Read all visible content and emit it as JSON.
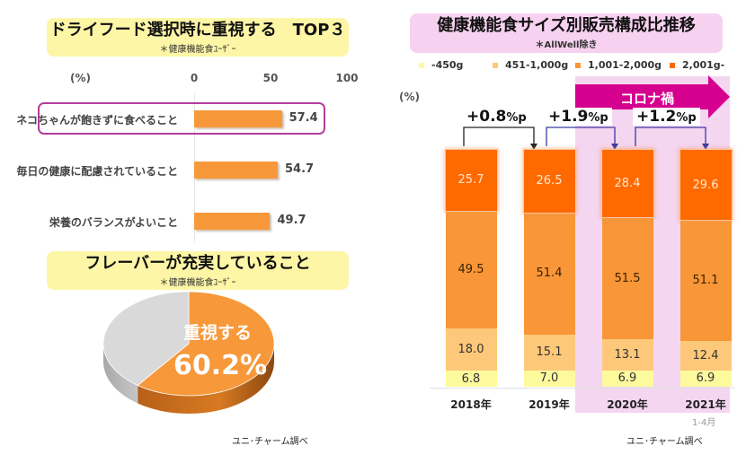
{
  "left": {
    "top_title": "ドライフード選択時に重視する　TOP３",
    "top_subtitle": "＊健康機能食ﾕｰｻﾞｰ",
    "unit_label": "(%)",
    "axis_ticks": [
      "0",
      "50",
      "100"
    ],
    "highlight_color": "#b43c9b",
    "bars": [
      {
        "label": "ネコちゃんが飽きずに食べること",
        "value": 57.4,
        "display": "57.4",
        "highlighted": true
      },
      {
        "label": "毎日の健康に配慮されていること",
        "value": 54.7,
        "display": "54.7",
        "highlighted": false
      },
      {
        "label": "栄養のバランスがよいこと",
        "value": 49.7,
        "display": "49.7",
        "highlighted": false
      }
    ],
    "pie_title": "フレーバーが充実していること",
    "pie_subtitle": "＊健康機能食ﾕｰｻﾞｰ",
    "pie_label": "重視する",
    "pie_value_text": "60.2%",
    "source": "ユニ･チャーム調べ"
  },
  "right": {
    "title": "健康機能食サイズ別販売構成比推移",
    "subtitle": "＊AllWell除き",
    "unit_label": "(%)",
    "corona_label": "コロナ禍",
    "corona_color": "#d6008f",
    "deltas": [
      {
        "prefix": "+",
        "value": "0.8",
        "suffix": "%p"
      },
      {
        "prefix": "+",
        "value": "1.9",
        "suffix": "%p"
      },
      {
        "prefix": "+",
        "value": "1.2",
        "suffix": "%p"
      }
    ],
    "x_sublabel": "1-4月",
    "source": "ユニ･チャーム調べ"
  },
  "chart_data": [
    {
      "type": "bar",
      "orientation": "horizontal",
      "title": "ドライフード選択時に重視する TOP３",
      "subtitle": "＊健康機能食ﾕｰｻﾞｰ",
      "categories": [
        "ネコちゃんが飽きずに食べること",
        "毎日の健康に配慮されていること",
        "栄養のバランスがよいこと"
      ],
      "values": [
        57.4,
        54.7,
        49.7
      ],
      "xlabel": "(%)",
      "xlim": [
        0,
        100
      ],
      "xticks": [
        0,
        50,
        100
      ],
      "color": "#f7983a"
    },
    {
      "type": "pie",
      "title": "フレーバーが充実していること",
      "subtitle": "＊健康機能食ﾕｰｻﾞｰ",
      "slices": [
        {
          "label": "重視する",
          "value": 60.2,
          "color": "#f7983a"
        },
        {
          "label": "",
          "value": 39.8,
          "color": "#d9d9d9"
        }
      ],
      "style": "3d"
    },
    {
      "type": "bar",
      "orientation": "vertical",
      "stacked": true,
      "title": "健康機能食サイズ別販売構成比推移",
      "subtitle": "＊AllWell除き",
      "ylabel": "(%)",
      "ylim": [
        0,
        100
      ],
      "categories": [
        "2018年",
        "2019年",
        "2020年",
        "2021年"
      ],
      "category_notes": [
        "",
        "",
        "",
        "1-4月"
      ],
      "series": [
        {
          "name": "-450g",
          "values": [
            6.8,
            7.0,
            6.9,
            6.9
          ],
          "color": "#fdfa9e"
        },
        {
          "name": "451-1,000g",
          "values": [
            18.0,
            15.1,
            13.1,
            12.4
          ],
          "color": "#fdc87a"
        },
        {
          "name": "1,001-2,000g",
          "values": [
            49.5,
            51.4,
            51.5,
            51.1
          ],
          "color": "#f89638"
        },
        {
          "name": "2,001g-",
          "values": [
            25.7,
            26.5,
            28.4,
            29.6
          ],
          "color": "#ff6a00"
        }
      ],
      "annotations": [
        {
          "from": "2018年",
          "to": "2019年",
          "text": "+0.8%p"
        },
        {
          "from": "2019年",
          "to": "2020年",
          "text": "+1.9%p"
        },
        {
          "from": "2020年",
          "to": "2021年",
          "text": "+1.2%p"
        },
        {
          "range": [
            "2020年",
            "2021年"
          ],
          "text": "コロナ禍"
        }
      ],
      "legend": "top"
    }
  ]
}
